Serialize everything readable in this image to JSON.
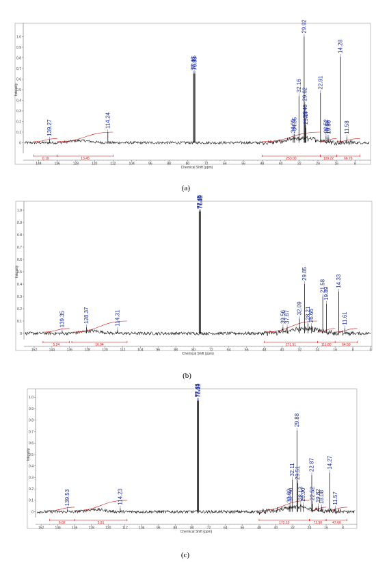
{
  "chart_data": [
    {
      "type": "line",
      "panel_label": "(a)",
      "xlabel": "Chemical Shift (ppm)",
      "ylabel": "Intensity",
      "xlim": [
        150,
        2
      ],
      "ylim": [
        -0.1,
        1.1
      ],
      "x_ticks": [
        "144",
        "136",
        "128",
        "120",
        "112",
        "104",
        "96",
        "88",
        "80",
        "72",
        "64",
        "56",
        "48",
        "40",
        "32",
        "24",
        "16",
        "8"
      ],
      "y_ticks": [
        "0",
        "0.1",
        "0.2",
        "0.3",
        "0.4",
        "0.5",
        "0.6",
        "0.7",
        "0.8",
        "0.9",
        "1.0"
      ],
      "peaks": [
        {
          "label": "139.27",
          "x": 139.27,
          "y": 0.03
        },
        {
          "label": "114.24",
          "x": 114.24,
          "y": 0.1
        },
        {
          "label": "77.46",
          "x": 77.46,
          "y": 0.65
        },
        {
          "label": "77.15",
          "x": 77.15,
          "y": 0.66
        },
        {
          "label": "76.83",
          "x": 76.83,
          "y": 0.65
        },
        {
          "label": "34.60",
          "x": 34.6,
          "y": 0.06
        },
        {
          "label": "34.05",
          "x": 34.05,
          "y": 0.08
        },
        {
          "label": "32.16",
          "x": 32.16,
          "y": 0.44
        },
        {
          "label": "29.92",
          "x": 29.92,
          "y": 1.0
        },
        {
          "label": "29.62",
          "x": 29.62,
          "y": 0.36
        },
        {
          "label": "29.40",
          "x": 29.4,
          "y": 0.2
        },
        {
          "label": "29.17",
          "x": 29.17,
          "y": 0.14
        },
        {
          "label": "22.91",
          "x": 22.91,
          "y": 0.47
        },
        {
          "label": "20.52",
          "x": 20.52,
          "y": 0.06
        },
        {
          "label": "19.86",
          "x": 19.86,
          "y": 0.05
        },
        {
          "label": "19.36",
          "x": 19.36,
          "y": 0.05
        },
        {
          "label": "14.28",
          "x": 14.28,
          "y": 0.81
        },
        {
          "label": "11.58",
          "x": 11.58,
          "y": 0.05
        }
      ],
      "integrals": [
        {
          "label": "0.19",
          "from": 146,
          "to": 136
        },
        {
          "label": "13.45",
          "from": 136,
          "to": 112
        },
        {
          "label": "253.00",
          "from": 48,
          "to": 23
        },
        {
          "label": "109.22",
          "from": 23,
          "to": 16
        },
        {
          "label": "66.76",
          "from": 16,
          "to": 6
        }
      ]
    },
    {
      "type": "line",
      "panel_label": "(b)",
      "xlabel": "Chemical Shift (ppm)",
      "ylabel": "Intensity",
      "xlim": [
        156,
        0
      ],
      "ylim": [
        -0.05,
        1.05
      ],
      "x_ticks": [
        "152",
        "144",
        "136",
        "128",
        "120",
        "112",
        "104",
        "96",
        "88",
        "80",
        "72",
        "64",
        "56",
        "48",
        "40",
        "32",
        "24",
        "16",
        "8",
        "0"
      ],
      "y_ticks": [
        "0",
        "0.1",
        "0.2",
        "0.3",
        "0.4",
        "0.5",
        "0.6",
        "0.7",
        "0.8",
        "0.9",
        "1.0"
      ],
      "peaks": [
        {
          "label": "139.35",
          "x": 139.35,
          "y": 0.02
        },
        {
          "label": "128.37",
          "x": 128.37,
          "y": 0.05
        },
        {
          "label": "114.31",
          "x": 114.31,
          "y": 0.03
        },
        {
          "label": "77.45",
          "x": 77.45,
          "y": 0.99
        },
        {
          "label": "77.14",
          "x": 77.14,
          "y": 0.99
        },
        {
          "label": "76.82",
          "x": 76.82,
          "y": 0.99
        },
        {
          "label": "39.56",
          "x": 39.56,
          "y": 0.05
        },
        {
          "label": "37.67",
          "x": 37.67,
          "y": 0.05
        },
        {
          "label": "32.09",
          "x": 32.09,
          "y": 0.12
        },
        {
          "label": "29.85",
          "x": 29.85,
          "y": 0.4
        },
        {
          "label": "28.21",
          "x": 28.21,
          "y": 0.08
        },
        {
          "label": "26.66",
          "x": 26.66,
          "y": 0.06
        },
        {
          "label": "21.58",
          "x": 21.58,
          "y": 0.3
        },
        {
          "label": "19.89",
          "x": 19.89,
          "y": 0.24
        },
        {
          "label": "14.33",
          "x": 14.33,
          "y": 0.34
        },
        {
          "label": "11.61",
          "x": 11.61,
          "y": 0.04
        }
      ],
      "integrals": [
        {
          "label": "5.24",
          "from": 148,
          "to": 136
        },
        {
          "label": "16.94",
          "from": 135,
          "to": 110
        },
        {
          "label": "271.51",
          "from": 48,
          "to": 24
        },
        {
          "label": "111.80",
          "from": 24,
          "to": 16
        },
        {
          "label": "64.59",
          "from": 16,
          "to": 6
        }
      ]
    },
    {
      "type": "line",
      "panel_label": "(c)",
      "xlabel": "Chemical Shift (ppm)",
      "ylabel": "Intensity",
      "xlim": [
        154,
        2
      ],
      "ylim": [
        -0.05,
        1.05
      ],
      "x_ticks": [
        "152",
        "144",
        "136",
        "128",
        "120",
        "112",
        "104",
        "96",
        "88",
        "80",
        "72",
        "64",
        "56",
        "48",
        "40",
        "32",
        "24",
        "16",
        "8"
      ],
      "y_ticks": [
        "0",
        "0.1",
        "0.2",
        "0.3",
        "0.4",
        "0.5",
        "0.6",
        "0.7",
        "0.8",
        "0.9",
        "1.0"
      ],
      "peaks": [
        {
          "label": "139.53",
          "x": 139.53,
          "y": 0.02
        },
        {
          "label": "114.23",
          "x": 114.23,
          "y": 0.03
        },
        {
          "label": "77.45",
          "x": 77.45,
          "y": 0.97
        },
        {
          "label": "77.14",
          "x": 77.14,
          "y": 0.97
        },
        {
          "label": "76.82",
          "x": 76.82,
          "y": 0.97
        },
        {
          "label": "33.60",
          "x": 33.6,
          "y": 0.05
        },
        {
          "label": "32.90",
          "x": 32.9,
          "y": 0.06
        },
        {
          "label": "32.11",
          "x": 32.11,
          "y": 0.28
        },
        {
          "label": "29.88",
          "x": 29.88,
          "y": 0.71
        },
        {
          "label": "29.51",
          "x": 29.51,
          "y": 0.25
        },
        {
          "label": "28.13",
          "x": 28.13,
          "y": 0.07
        },
        {
          "label": "26.90",
          "x": 26.9,
          "y": 0.06
        },
        {
          "label": "22.87",
          "x": 22.87,
          "y": 0.32
        },
        {
          "label": "22.52",
          "x": 22.52,
          "y": 0.07
        },
        {
          "label": "19.82",
          "x": 19.82,
          "y": 0.05
        },
        {
          "label": "18.08",
          "x": 18.08,
          "y": 0.04
        },
        {
          "label": "14.27",
          "x": 14.27,
          "y": 0.34
        },
        {
          "label": "11.57",
          "x": 11.57,
          "y": 0.03
        }
      ],
      "integrals": [
        {
          "label": "6.02",
          "from": 148,
          "to": 136
        },
        {
          "label": "5.91",
          "from": 136,
          "to": 111
        },
        {
          "label": "173.10",
          "from": 48,
          "to": 24
        },
        {
          "label": "72.50",
          "from": 24,
          "to": 16
        },
        {
          "label": "47.60",
          "from": 16,
          "to": 6
        }
      ]
    }
  ],
  "colors": {
    "spectrum": "#111111",
    "peak_label": "#1a2a9a",
    "integral": "#d01010"
  }
}
